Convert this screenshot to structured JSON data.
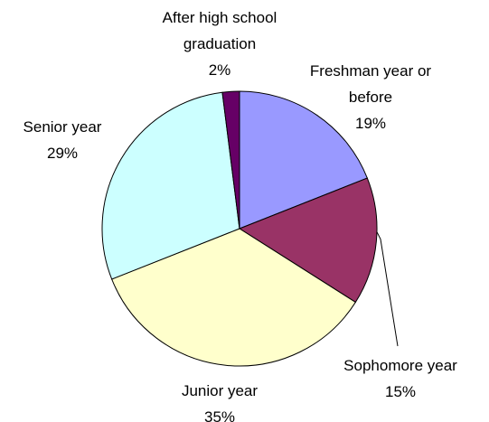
{
  "chart_data": {
    "type": "pie",
    "title": "",
    "start_angle_deg": 0,
    "direction": "clockwise",
    "slices": [
      {
        "name": "Freshman year or before",
        "label_lines": [
          "Freshman year or",
          "before"
        ],
        "value": 19,
        "value_label": "19%",
        "color": "#9999FF"
      },
      {
        "name": "Sophomore year",
        "label_lines": [
          "Sophomore year"
        ],
        "value": 15,
        "value_label": "15%",
        "color": "#993366"
      },
      {
        "name": "Junior year",
        "label_lines": [
          "Junior year"
        ],
        "value": 35,
        "value_label": "35%",
        "color": "#FFFFCC"
      },
      {
        "name": "Senior year",
        "label_lines": [
          "Senior year"
        ],
        "value": 29,
        "value_label": "29%",
        "color": "#CCFFFF"
      },
      {
        "name": "After high school graduation",
        "label_lines": [
          "After high school",
          "graduation"
        ],
        "value": 2,
        "value_label": "2%",
        "color": "#660066"
      }
    ]
  }
}
